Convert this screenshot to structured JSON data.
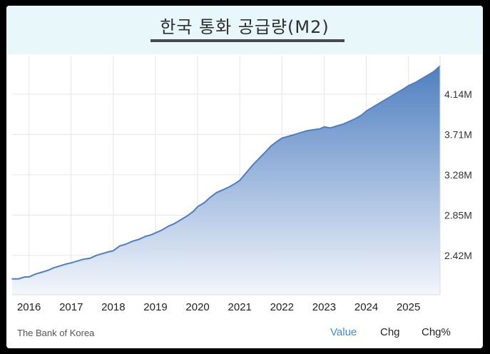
{
  "title": "한국 통화 공급량(M2)",
  "source": "The Bank of Korea",
  "tabs": [
    "Value",
    "Chg",
    "Chg%"
  ],
  "active_tab": "Value",
  "colors": {
    "line": "#4f7fc0",
    "fill_top": "#4e7fc0",
    "fill_bottom": "#f3f6fc",
    "grid": "#e6e6e6",
    "active_tab": "#3b8fd9",
    "title_band": "#e8f7fa"
  },
  "chart_data": {
    "type": "area",
    "title": "한국 통화 공급량(M2)",
    "unit": "M",
    "x_ticks": [
      "2016",
      "2017",
      "2018",
      "2019",
      "2020",
      "2021",
      "2022",
      "2023",
      "2024",
      "2025"
    ],
    "y_ticks": [
      "2.42M",
      "2.85M",
      "3.28M",
      "3.71M",
      "4.14M"
    ],
    "y_tick_values": [
      2.42,
      2.85,
      3.28,
      3.71,
      4.14
    ],
    "xlim": [
      2015.6,
      2025.75
    ],
    "ylim": [
      2.0,
      4.55
    ],
    "grid": true,
    "series": [
      {
        "x": [
          2015.6,
          2015.75,
          2015.9,
          2016.0,
          2016.15,
          2016.3,
          2016.45,
          2016.6,
          2016.75,
          2016.9,
          2017.0,
          2017.15,
          2017.3,
          2017.45,
          2017.6,
          2017.75,
          2017.9,
          2018.0,
          2018.15,
          2018.3,
          2018.45,
          2018.6,
          2018.75,
          2018.9,
          2019.0,
          2019.15,
          2019.3,
          2019.45,
          2019.6,
          2019.75,
          2019.9,
          2020.0,
          2020.15,
          2020.3,
          2020.45,
          2020.6,
          2020.75,
          2020.9,
          2021.0,
          2021.15,
          2021.3,
          2021.45,
          2021.6,
          2021.75,
          2021.9,
          2022.0,
          2022.15,
          2022.3,
          2022.45,
          2022.6,
          2022.75,
          2022.9,
          2023.0,
          2023.15,
          2023.3,
          2023.45,
          2023.6,
          2023.75,
          2023.9,
          2024.0,
          2024.15,
          2024.3,
          2024.45,
          2024.6,
          2024.75,
          2024.9,
          2025.0,
          2025.15,
          2025.3,
          2025.45,
          2025.6,
          2025.75
        ],
        "values": [
          2.17,
          2.17,
          2.19,
          2.19,
          2.22,
          2.24,
          2.26,
          2.29,
          2.31,
          2.33,
          2.34,
          2.36,
          2.38,
          2.39,
          2.42,
          2.44,
          2.46,
          2.47,
          2.52,
          2.54,
          2.57,
          2.59,
          2.62,
          2.64,
          2.66,
          2.69,
          2.73,
          2.76,
          2.8,
          2.84,
          2.89,
          2.94,
          2.98,
          3.04,
          3.09,
          3.12,
          3.15,
          3.19,
          3.22,
          3.3,
          3.38,
          3.45,
          3.52,
          3.59,
          3.64,
          3.67,
          3.69,
          3.71,
          3.73,
          3.75,
          3.76,
          3.77,
          3.79,
          3.78,
          3.8,
          3.82,
          3.85,
          3.88,
          3.92,
          3.96,
          4.0,
          4.04,
          4.08,
          4.12,
          4.16,
          4.2,
          4.23,
          4.26,
          4.3,
          4.34,
          4.38,
          4.44
        ]
      }
    ]
  }
}
